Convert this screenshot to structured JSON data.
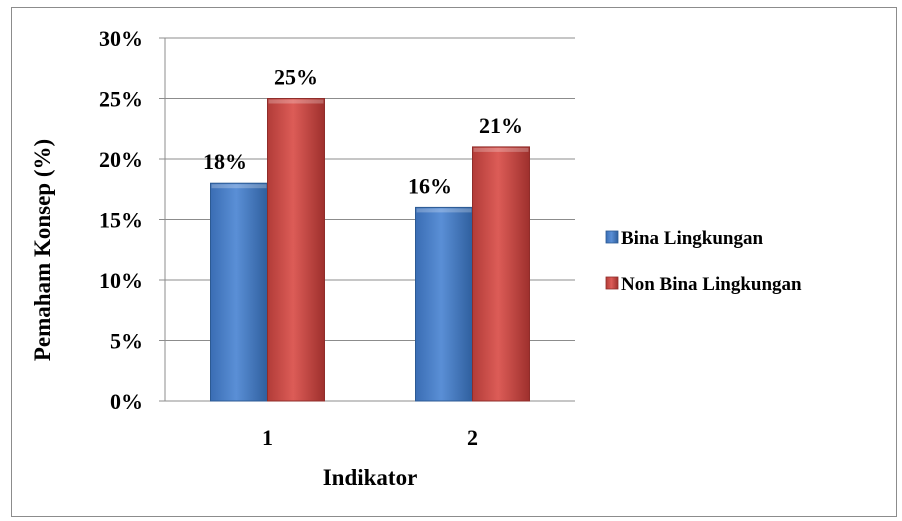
{
  "chart_data": {
    "type": "bar",
    "xlabel": "Indikator",
    "ylabel": "Pemaham Konsep (%)",
    "categories": [
      "1",
      "2"
    ],
    "ylim": [
      0,
      30
    ],
    "ytick_values": [
      0,
      5,
      10,
      15,
      20,
      25,
      30
    ],
    "ytick_labels": [
      "0%",
      "5%",
      "10%",
      "15%",
      "20%",
      "25%",
      "30%"
    ],
    "value_suffix": "%",
    "grid": true,
    "legend_position": "right",
    "series": [
      {
        "name": "Bina Lingkungan",
        "values": [
          18,
          16
        ],
        "color": "#4a7ebb"
      },
      {
        "name": "Non Bina Lingkungan",
        "values": [
          25,
          21
        ],
        "color": "#c0504d"
      }
    ]
  }
}
